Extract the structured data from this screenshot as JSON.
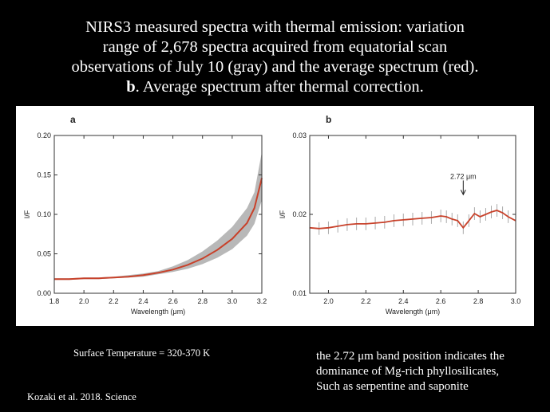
{
  "slide": {
    "title_lines": [
      "NIRS3 measured spectra with thermal emission: variation",
      "range of 2,678 spectra acquired from equatorial scan",
      "observations of July 10 (gray) and the average spectrum (red)."
    ],
    "subtitle_bold": "b",
    "subtitle_rest": ". Average spectrum after thermal correction.",
    "temperature_note": "Surface Temperature = 320-370 K",
    "citation": "Kozaki et al. 2018. Science",
    "band_note_lines": [
      "the 2.72 μm band position indicates the",
      "dominance of Mg-rich phyllosilicates,",
      "Such as serpentine and saponite"
    ]
  },
  "colors": {
    "mean": "#c8412a",
    "range": "#b8b8b8",
    "axis": "#333333"
  },
  "chart_data": [
    {
      "type": "area",
      "panel_label": "a",
      "xlabel": "Wavelength (μm)",
      "ylabel": "I/F",
      "xlim": [
        1.8,
        3.2
      ],
      "ylim": [
        0.0,
        0.2
      ],
      "xticks": [
        1.8,
        2.0,
        2.2,
        2.4,
        2.6,
        2.8,
        3.0,
        3.2
      ],
      "xtick_labels": [
        "1.8",
        "2.0",
        "2.2",
        "2.4",
        "2.6",
        "2.8",
        "3.0",
        "3.2"
      ],
      "yticks": [
        0.0,
        0.05,
        0.1,
        0.15,
        0.2
      ],
      "ytick_labels": [
        "0.00",
        "0.05",
        "0.10",
        "0.15",
        "0.20"
      ],
      "x": [
        1.8,
        1.9,
        2.0,
        2.1,
        2.2,
        2.3,
        2.4,
        2.5,
        2.6,
        2.7,
        2.8,
        2.9,
        3.0,
        3.1,
        3.15,
        3.2
      ],
      "mean": [
        0.018,
        0.018,
        0.019,
        0.019,
        0.02,
        0.021,
        0.023,
        0.026,
        0.03,
        0.036,
        0.044,
        0.055,
        0.069,
        0.089,
        0.108,
        0.146
      ],
      "upper": [
        0.019,
        0.019,
        0.02,
        0.02,
        0.021,
        0.023,
        0.025,
        0.028,
        0.034,
        0.042,
        0.053,
        0.067,
        0.084,
        0.108,
        0.128,
        0.179
      ],
      "lower": [
        0.017,
        0.017,
        0.018,
        0.018,
        0.019,
        0.02,
        0.021,
        0.024,
        0.027,
        0.031,
        0.037,
        0.045,
        0.056,
        0.073,
        0.088,
        0.118
      ]
    },
    {
      "type": "line",
      "panel_label": "b",
      "xlabel": "Wavelength (μm)",
      "ylabel": "I/F",
      "xlim": [
        1.9,
        3.0
      ],
      "ylim": [
        0.01,
        0.03
      ],
      "xticks": [
        2.0,
        2.2,
        2.4,
        2.6,
        2.8,
        3.0
      ],
      "xtick_labels": [
        "2.0",
        "2.2",
        "2.4",
        "2.6",
        "2.8",
        "3.0"
      ],
      "yticks": [
        0.01,
        0.02,
        0.03
      ],
      "ytick_labels": [
        "0.01",
        "0.02",
        "0.03"
      ],
      "annotation": {
        "text": "2.72 μm",
        "x": 2.72,
        "y_text": 0.0245,
        "y_arrow_from": 0.0243,
        "y_arrow_to": 0.0225
      },
      "error": 0.0008,
      "x": [
        1.9,
        1.95,
        2.0,
        2.05,
        2.1,
        2.15,
        2.2,
        2.25,
        2.3,
        2.35,
        2.4,
        2.45,
        2.5,
        2.55,
        2.6,
        2.63,
        2.66,
        2.69,
        2.72,
        2.75,
        2.78,
        2.81,
        2.84,
        2.87,
        2.9,
        2.93,
        2.96,
        3.0
      ],
      "y": [
        0.0183,
        0.0182,
        0.0183,
        0.0185,
        0.0187,
        0.0188,
        0.0188,
        0.0189,
        0.019,
        0.0192,
        0.0193,
        0.0194,
        0.0195,
        0.0196,
        0.0198,
        0.0197,
        0.0194,
        0.0192,
        0.0183,
        0.0192,
        0.0201,
        0.0197,
        0.02,
        0.0203,
        0.0205,
        0.0202,
        0.0197,
        0.0192
      ]
    }
  ]
}
